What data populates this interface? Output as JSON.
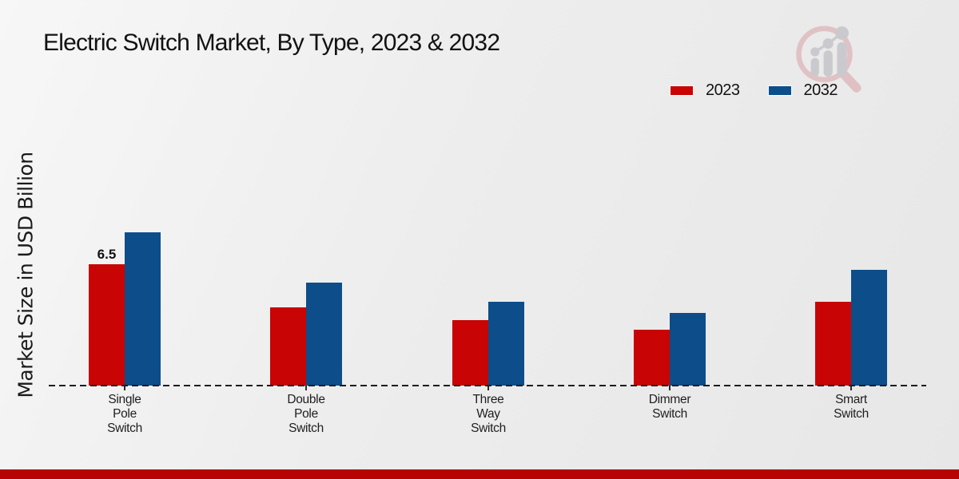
{
  "title": "Electric Switch Market, By Type, 2023 & 2032",
  "y_axis_label": "Market Size in USD Billion",
  "legend": [
    {
      "label": "2023",
      "color": "#c80404"
    },
    {
      "label": "2032",
      "color": "#0c4d8a"
    }
  ],
  "chart_data": {
    "type": "bar",
    "title": "Electric Switch Market, By Type, 2023 & 2032",
    "ylabel": "Market Size in USD Billion",
    "xlabel": "",
    "categories": [
      "Single Pole Switch",
      "Double Pole Switch",
      "Three Way Switch",
      "Dimmer Switch",
      "Smart Switch"
    ],
    "category_label_lines": [
      "Single\nPole\nSwitch",
      "Double\nPole\nSwitch",
      "Three\nWay\nSwitch",
      "Dimmer\nSwitch",
      "Smart\nSwitch"
    ],
    "series": [
      {
        "name": "2023",
        "color": "#c80404",
        "values": [
          6.5,
          4.2,
          3.5,
          3.0,
          4.5
        ]
      },
      {
        "name": "2032",
        "color": "#0c4d8a",
        "values": [
          8.2,
          5.5,
          4.5,
          3.9,
          6.2
        ]
      }
    ],
    "annotations": [
      {
        "series": "2023",
        "category_index": 0,
        "text": "6.5"
      }
    ],
    "ylim": [
      0,
      8.5
    ],
    "grid": false,
    "axis_line_style": "dashed",
    "legend_position": "top-right"
  },
  "watermark": {
    "name": "magnifier-growth-chart-logo",
    "ring_color": "#dcb0b4",
    "figure_color": "#c7c7cc"
  },
  "footer": {
    "accent_color": "#b50403"
  }
}
